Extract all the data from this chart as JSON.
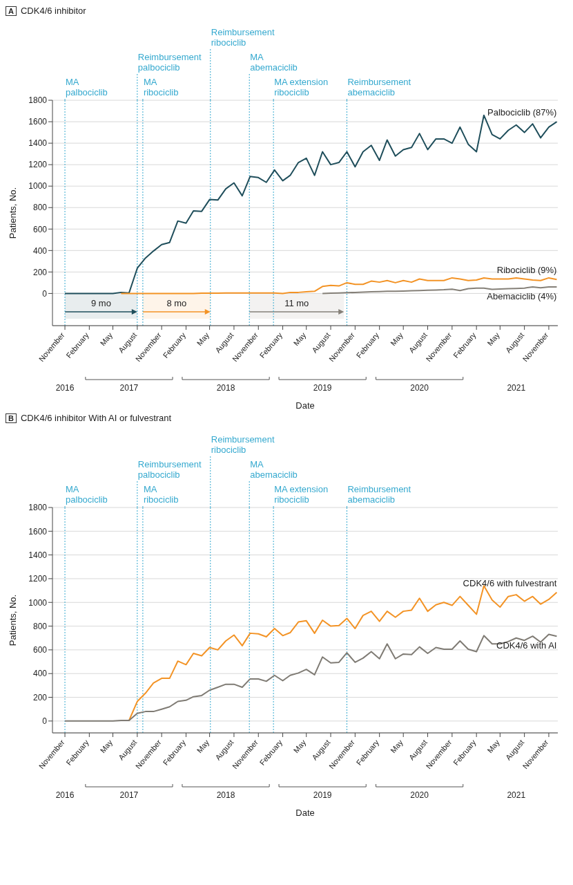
{
  "chart_data": [
    {
      "type": "line",
      "title": "CDK4/6 inhibitor",
      "annotations": [
        "A"
      ],
      "xlabel": "Date",
      "ylabel": "Patients, No.",
      "grid": "y",
      "x": [
        "2016-11",
        "2016-12",
        "2017-01",
        "2017-02",
        "2017-03",
        "2017-04",
        "2017-05",
        "2017-06",
        "2017-07",
        "2017-08",
        "2017-09",
        "2017-10",
        "2017-11",
        "2017-12",
        "2018-01",
        "2018-02",
        "2018-03",
        "2018-04",
        "2018-05",
        "2018-06",
        "2018-07",
        "2018-08",
        "2018-09",
        "2018-10",
        "2018-11",
        "2018-12",
        "2019-01",
        "2019-02",
        "2019-03",
        "2019-04",
        "2019-05",
        "2019-06",
        "2019-07",
        "2019-08",
        "2019-09",
        "2019-10",
        "2019-11",
        "2019-12",
        "2020-01",
        "2020-02",
        "2020-03",
        "2020-04",
        "2020-05",
        "2020-06",
        "2020-07",
        "2020-08",
        "2020-09",
        "2020-10",
        "2020-11",
        "2020-12",
        "2021-01",
        "2021-02",
        "2021-03",
        "2021-04",
        "2021-05",
        "2021-06",
        "2021-07",
        "2021-08",
        "2021-09",
        "2021-10",
        "2021-11",
        "2021-12"
      ],
      "series": [
        {
          "name": "Palbociclib (87%)",
          "color": "#1f4e5b",
          "values": [
            0,
            0,
            0,
            0,
            0,
            0,
            0,
            10,
            5,
            235,
            330,
            395,
            455,
            475,
            675,
            655,
            770,
            765,
            875,
            870,
            975,
            1030,
            910,
            1090,
            1080,
            1035,
            1150,
            1050,
            1100,
            1220,
            1260,
            1100,
            1320,
            1200,
            1220,
            1320,
            1180,
            1320,
            1380,
            1240,
            1430,
            1280,
            1340,
            1360,
            1490,
            1340,
            1440,
            1440,
            1400,
            1550,
            1390,
            1320,
            1660,
            1480,
            1440,
            1520,
            1570,
            1500,
            1580,
            1450,
            1550,
            1600
          ]
        },
        {
          "name": "Ribociclib (9%)",
          "color": "#f39325",
          "values": [
            null,
            null,
            null,
            null,
            null,
            null,
            null,
            0,
            0,
            0,
            0,
            0,
            0,
            0,
            0,
            0,
            0,
            2,
            2,
            2,
            5,
            5,
            5,
            5,
            5,
            5,
            5,
            0,
            10,
            10,
            15,
            20,
            65,
            75,
            70,
            100,
            85,
            85,
            115,
            105,
            120,
            100,
            120,
            105,
            135,
            120,
            120,
            120,
            145,
            135,
            120,
            125,
            145,
            135,
            135,
            135,
            145,
            135,
            125,
            120,
            145,
            130
          ]
        },
        {
          "name": "Abemaciclib (4%)",
          "color": "#858078",
          "values": [
            null,
            null,
            null,
            null,
            null,
            null,
            null,
            null,
            null,
            null,
            null,
            null,
            null,
            null,
            null,
            null,
            null,
            null,
            null,
            null,
            null,
            null,
            null,
            null,
            null,
            null,
            null,
            null,
            null,
            null,
            null,
            null,
            0,
            2,
            5,
            7,
            10,
            12,
            15,
            17,
            20,
            20,
            22,
            25,
            27,
            30,
            32,
            35,
            40,
            27,
            45,
            50,
            50,
            38,
            42,
            45,
            47,
            50,
            60,
            52,
            60,
            60
          ]
        }
      ],
      "xlim": [
        "2016-09-15",
        "2021-12-05"
      ],
      "xticks": [
        {
          "value": "2016-11",
          "label": "November"
        },
        {
          "value": "2017-02",
          "label": "February"
        },
        {
          "value": "2017-05",
          "label": "May"
        },
        {
          "value": "2017-08",
          "label": "August"
        },
        {
          "value": "2017-11",
          "label": "November"
        },
        {
          "value": "2018-02",
          "label": "February"
        },
        {
          "value": "2018-05",
          "label": "May"
        },
        {
          "value": "2018-08",
          "label": "August"
        },
        {
          "value": "2018-11",
          "label": "November"
        },
        {
          "value": "2019-02",
          "label": "February"
        },
        {
          "value": "2019-05",
          "label": "May"
        },
        {
          "value": "2019-08",
          "label": "August"
        },
        {
          "value": "2019-11",
          "label": "November"
        },
        {
          "value": "2020-02",
          "label": "February"
        },
        {
          "value": "2020-05",
          "label": "May"
        },
        {
          "value": "2020-08",
          "label": "August"
        },
        {
          "value": "2020-11",
          "label": "November"
        },
        {
          "value": "2021-02",
          "label": "February"
        },
        {
          "value": "2021-05",
          "label": "May"
        },
        {
          "value": "2021-08",
          "label": "August"
        },
        {
          "value": "2021-11",
          "label": "November"
        }
      ],
      "x2lim": [
        "2016-09-15",
        "2021-12-05"
      ],
      "x2ticks": [
        {
          "value": "2016-11",
          "label": "2016"
        },
        {
          "value": "2017-07",
          "label": "2017"
        },
        {
          "value": "2018-07",
          "label": "2018"
        },
        {
          "value": "2019-07",
          "label": "2019"
        },
        {
          "value": "2020-07",
          "label": "2020"
        },
        {
          "value": "2021-07",
          "label": "2021"
        }
      ],
      "ylim": [
        -300,
        1800
      ],
      "yticks": [
        0,
        200,
        400,
        600,
        800,
        1000,
        1200,
        1400,
        1600,
        1800
      ],
      "ref_lines": [
        {
          "axis": "x",
          "value": "2016-11-01",
          "label": "MA\npalbociclib",
          "color": "#35a9cf",
          "line_style": "dotted"
        },
        {
          "axis": "x",
          "value": "2017-08-01",
          "label": "Reimbursement\npalbociclib",
          "color": "#35a9cf",
          "line_style": "dotted"
        },
        {
          "axis": "x",
          "value": "2017-08-22",
          "label": "MA\nribociclib",
          "color": "#35a9cf",
          "line_style": "dotted"
        },
        {
          "axis": "x",
          "value": "2018-05-04",
          "label": "Reimbursement\nribociclib",
          "color": "#35a9cf",
          "line_style": "dotted"
        },
        {
          "axis": "x",
          "value": "2018-09-28",
          "label": "MA\nabemaciclib",
          "color": "#35a9cf",
          "line_style": "dotted"
        },
        {
          "axis": "x",
          "value": "2018-12-28",
          "label": "MA extension\nribociclib",
          "color": "#35a9cf",
          "line_style": "dotted"
        },
        {
          "axis": "x",
          "value": "2019-10-01",
          "label": "Reimbursement\nabemaciclib",
          "color": "#35a9cf",
          "line_style": "dotted"
        }
      ],
      "bands": [
        {
          "axis": "x",
          "from": "2016-11-01",
          "to": "2017-08-01",
          "label": "9 mo",
          "color": "#1f4e5b"
        },
        {
          "axis": "x",
          "from": "2017-08-22",
          "to": "2018-05-04",
          "label": "8 mo",
          "color": "#f39325"
        },
        {
          "axis": "x",
          "from": "2018-09-28",
          "to": "2019-09-20",
          "label": "11 mo",
          "color": "#858078"
        }
      ]
    },
    {
      "type": "line",
      "title": "CDK4/6 inhibitor With AI or fulvestrant",
      "annotations": [
        "B"
      ],
      "xlabel": "Date",
      "ylabel": "Patients, No.",
      "grid": "y",
      "x": [
        "2016-11",
        "2016-12",
        "2017-01",
        "2017-02",
        "2017-03",
        "2017-04",
        "2017-05",
        "2017-06",
        "2017-07",
        "2017-08",
        "2017-09",
        "2017-10",
        "2017-11",
        "2017-12",
        "2018-01",
        "2018-02",
        "2018-03",
        "2018-04",
        "2018-05",
        "2018-06",
        "2018-07",
        "2018-08",
        "2018-09",
        "2018-10",
        "2018-11",
        "2018-12",
        "2019-01",
        "2019-02",
        "2019-03",
        "2019-04",
        "2019-05",
        "2019-06",
        "2019-07",
        "2019-08",
        "2019-09",
        "2019-10",
        "2019-11",
        "2019-12",
        "2020-01",
        "2020-02",
        "2020-03",
        "2020-04",
        "2020-05",
        "2020-06",
        "2020-07",
        "2020-08",
        "2020-09",
        "2020-10",
        "2020-11",
        "2020-12",
        "2021-01",
        "2021-02",
        "2021-03",
        "2021-04",
        "2021-05",
        "2021-06",
        "2021-07",
        "2021-08",
        "2021-09",
        "2021-10",
        "2021-11",
        "2021-12"
      ],
      "series": [
        {
          "name": "CDK4/6 with fulvestrant",
          "color": "#f39325",
          "values": [
            null,
            null,
            null,
            null,
            null,
            null,
            null,
            5,
            5,
            165,
            235,
            320,
            360,
            360,
            505,
            475,
            570,
            550,
            620,
            600,
            675,
            725,
            635,
            740,
            735,
            710,
            780,
            720,
            745,
            835,
            845,
            740,
            850,
            800,
            805,
            865,
            780,
            890,
            925,
            840,
            925,
            875,
            925,
            935,
            1035,
            925,
            980,
            1000,
            975,
            1050,
            975,
            900,
            1140,
            1020,
            960,
            1050,
            1065,
            1010,
            1050,
            985,
            1025,
            1085
          ]
        },
        {
          "name": "CDK4/6 with AI",
          "color": "#7f7b74",
          "values": [
            0,
            0,
            0,
            0,
            0,
            0,
            0,
            5,
            5,
            65,
            80,
            80,
            100,
            120,
            165,
            175,
            205,
            215,
            260,
            285,
            310,
            310,
            285,
            355,
            355,
            335,
            385,
            340,
            385,
            405,
            435,
            390,
            540,
            490,
            495,
            575,
            495,
            530,
            585,
            525,
            650,
            525,
            565,
            560,
            625,
            570,
            620,
            605,
            605,
            675,
            605,
            585,
            720,
            650,
            650,
            670,
            700,
            680,
            715,
            665,
            730,
            715
          ]
        }
      ],
      "xlim": [
        "2016-09-15",
        "2021-12-05"
      ],
      "xticks": [
        {
          "value": "2016-11",
          "label": "November"
        },
        {
          "value": "2017-02",
          "label": "February"
        },
        {
          "value": "2017-05",
          "label": "May"
        },
        {
          "value": "2017-08",
          "label": "August"
        },
        {
          "value": "2017-11",
          "label": "November"
        },
        {
          "value": "2018-02",
          "label": "February"
        },
        {
          "value": "2018-05",
          "label": "May"
        },
        {
          "value": "2018-08",
          "label": "August"
        },
        {
          "value": "2018-11",
          "label": "November"
        },
        {
          "value": "2019-02",
          "label": "February"
        },
        {
          "value": "2019-05",
          "label": "May"
        },
        {
          "value": "2019-08",
          "label": "August"
        },
        {
          "value": "2019-11",
          "label": "November"
        },
        {
          "value": "2020-02",
          "label": "February"
        },
        {
          "value": "2020-05",
          "label": "May"
        },
        {
          "value": "2020-08",
          "label": "August"
        },
        {
          "value": "2020-11",
          "label": "November"
        },
        {
          "value": "2021-02",
          "label": "February"
        },
        {
          "value": "2021-05",
          "label": "May"
        },
        {
          "value": "2021-08",
          "label": "August"
        },
        {
          "value": "2021-11",
          "label": "November"
        }
      ],
      "x2lim": [
        "2016-09-15",
        "2021-12-05"
      ],
      "x2ticks": [
        {
          "value": "2016-11",
          "label": "2016"
        },
        {
          "value": "2017-07",
          "label": "2017"
        },
        {
          "value": "2018-07",
          "label": "2018"
        },
        {
          "value": "2019-07",
          "label": "2019"
        },
        {
          "value": "2020-07",
          "label": "2020"
        },
        {
          "value": "2021-07",
          "label": "2021"
        }
      ],
      "ylim": [
        -100,
        1800
      ],
      "yticks": [
        0,
        200,
        400,
        600,
        800,
        1000,
        1200,
        1400,
        1600,
        1800
      ],
      "ref_lines": [
        {
          "axis": "x",
          "value": "2016-11-01",
          "label": "MA\npalbociclib",
          "color": "#35a9cf",
          "line_style": "dotted"
        },
        {
          "axis": "x",
          "value": "2017-08-01",
          "label": "Reimbursement\npalbociclib",
          "color": "#35a9cf",
          "line_style": "dotted"
        },
        {
          "axis": "x",
          "value": "2017-08-22",
          "label": "MA\nribociclib",
          "color": "#35a9cf",
          "line_style": "dotted"
        },
        {
          "axis": "x",
          "value": "2018-05-04",
          "label": "Reimbursement\nribociclib",
          "color": "#35a9cf",
          "line_style": "dotted"
        },
        {
          "axis": "x",
          "value": "2018-09-28",
          "label": "MA\nabemaciclib",
          "color": "#35a9cf",
          "line_style": "dotted"
        },
        {
          "axis": "x",
          "value": "2018-12-28",
          "label": "MA extension\nribociclib",
          "color": "#35a9cf",
          "line_style": "dotted"
        },
        {
          "axis": "x",
          "value": "2019-10-01",
          "label": "Reimbursement\nabemaciclib",
          "color": "#35a9cf",
          "line_style": "dotted"
        }
      ]
    }
  ]
}
